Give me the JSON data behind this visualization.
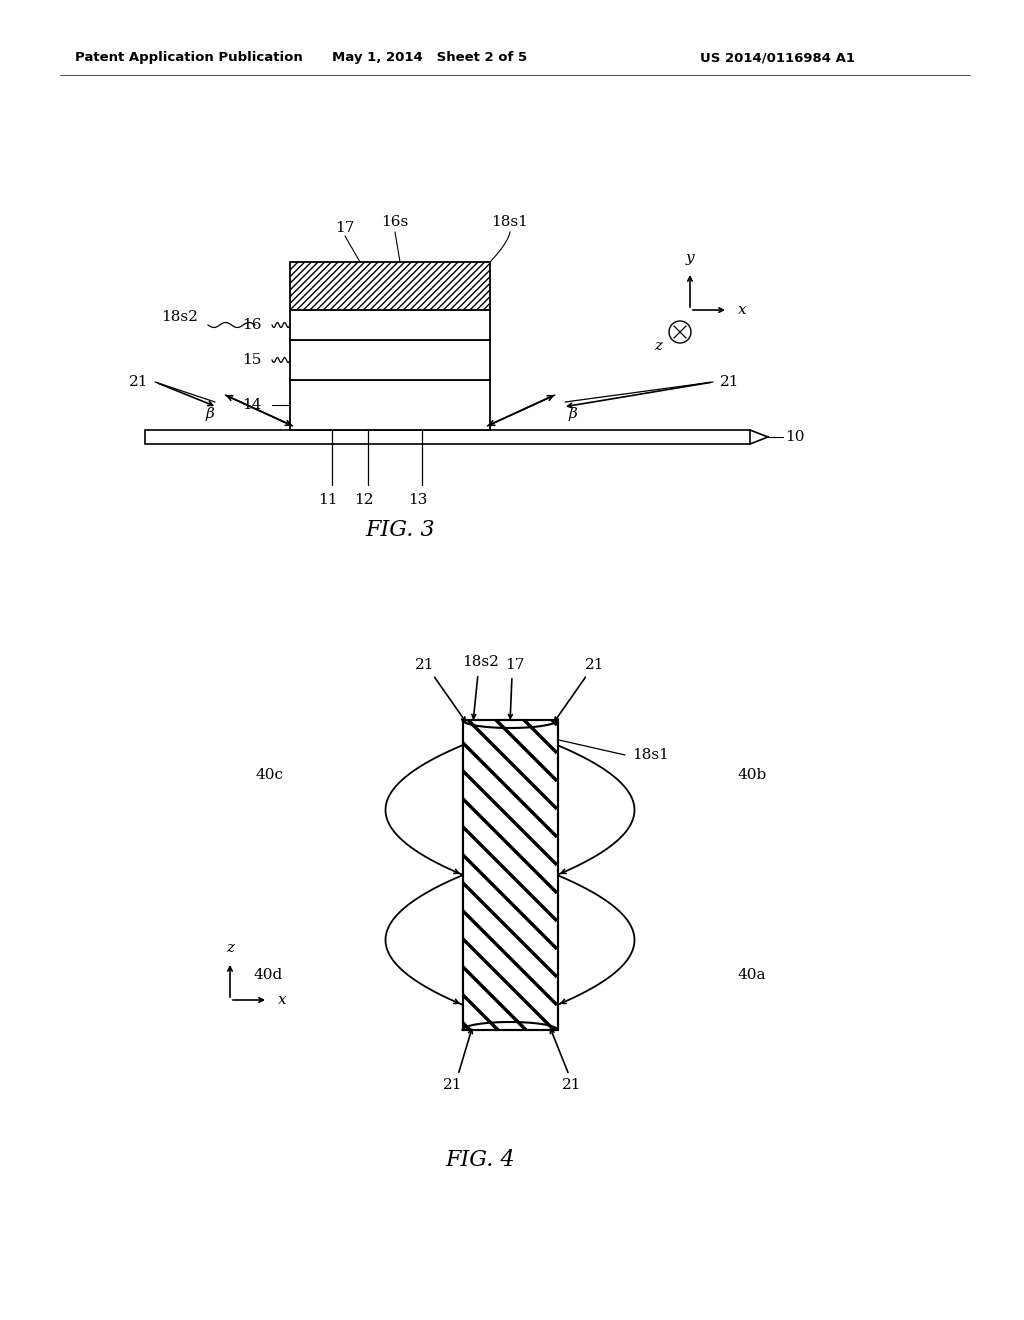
{
  "bg_color": "#ffffff",
  "header_text": "Patent Application Publication",
  "header_date": "May 1, 2014   Sheet 2 of 5",
  "header_patent": "US 2014/0116984 A1",
  "fig3_caption": "FIG. 3",
  "fig4_caption": "FIG. 4"
}
